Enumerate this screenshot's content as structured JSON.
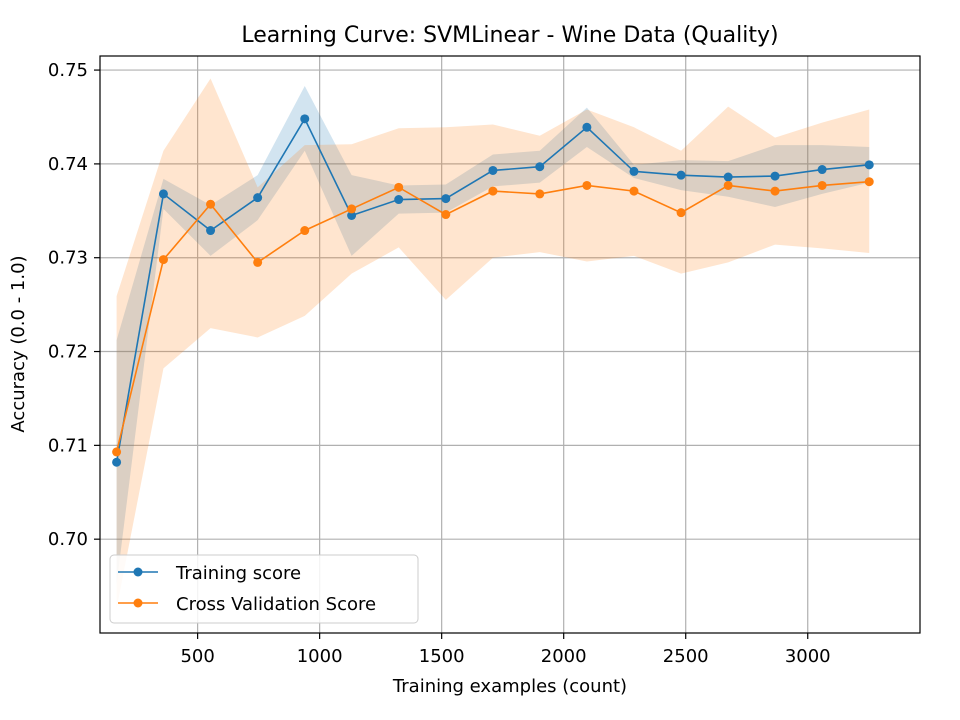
{
  "chart_data": {
    "type": "line",
    "title": "Learning Curve: SVMLinear - Wine Data (Quality)",
    "xlabel": "Training examples (count)",
    "ylabel": "Accuracy (0.0 - 1.0)",
    "xlim": [
      100,
      3460
    ],
    "ylim": [
      0.69,
      0.7515
    ],
    "x_ticks": [
      500,
      1000,
      1500,
      2000,
      2500,
      3000
    ],
    "y_ticks": [
      0.7,
      0.71,
      0.72,
      0.73,
      0.74,
      0.75
    ],
    "x_tick_labels": [
      "500",
      "1000",
      "1500",
      "2000",
      "2500",
      "3000"
    ],
    "y_tick_labels": [
      "0.70",
      "0.71",
      "0.72",
      "0.73",
      "0.74",
      "0.75"
    ],
    "grid": true,
    "legend_position": "lower-left",
    "x": [
      168,
      360,
      553,
      746,
      939,
      1131,
      1324,
      1517,
      1710,
      1902,
      2095,
      2288,
      2481,
      2674,
      2866,
      3059,
      3252
    ],
    "series": [
      {
        "name": "Training score",
        "color": "#1f77b4",
        "band_color": "#1f77b4",
        "values": [
          0.7082,
          0.7368,
          0.7329,
          0.7364,
          0.7448,
          0.7345,
          0.7362,
          0.7363,
          0.7393,
          0.7397,
          0.7439,
          0.7392,
          0.7388,
          0.7386,
          0.7387,
          0.7394,
          0.7399
        ],
        "lower": [
          0.6952,
          0.7352,
          0.7302,
          0.734,
          0.7414,
          0.7302,
          0.7347,
          0.7348,
          0.7376,
          0.738,
          0.7418,
          0.7385,
          0.7372,
          0.7365,
          0.7354,
          0.7368,
          0.738
        ],
        "upper": [
          0.7212,
          0.7384,
          0.7356,
          0.7388,
          0.7483,
          0.7388,
          0.7377,
          0.7378,
          0.741,
          0.7414,
          0.746,
          0.7399,
          0.7404,
          0.7403,
          0.742,
          0.742,
          0.7418
        ]
      },
      {
        "name": "Cross Validation Score",
        "color": "#ff7f0e",
        "band_color": "#ff7f0e",
        "values": [
          0.7093,
          0.7298,
          0.7357,
          0.7295,
          0.7329,
          0.7352,
          0.7375,
          0.7346,
          0.7371,
          0.7368,
          0.7377,
          0.7371,
          0.7348,
          0.7377,
          0.7371,
          0.7377,
          0.7381
        ],
        "lower": [
          0.6926,
          0.7182,
          0.7225,
          0.7215,
          0.7238,
          0.7283,
          0.7311,
          0.7255,
          0.73,
          0.7306,
          0.7296,
          0.7302,
          0.7283,
          0.7295,
          0.7314,
          0.731,
          0.7305
        ],
        "upper": [
          0.7259,
          0.7414,
          0.7491,
          0.7375,
          0.742,
          0.7421,
          0.7438,
          0.7439,
          0.7442,
          0.743,
          0.7458,
          0.7439,
          0.7414,
          0.7461,
          0.7428,
          0.7444,
          0.7458
        ]
      }
    ]
  }
}
